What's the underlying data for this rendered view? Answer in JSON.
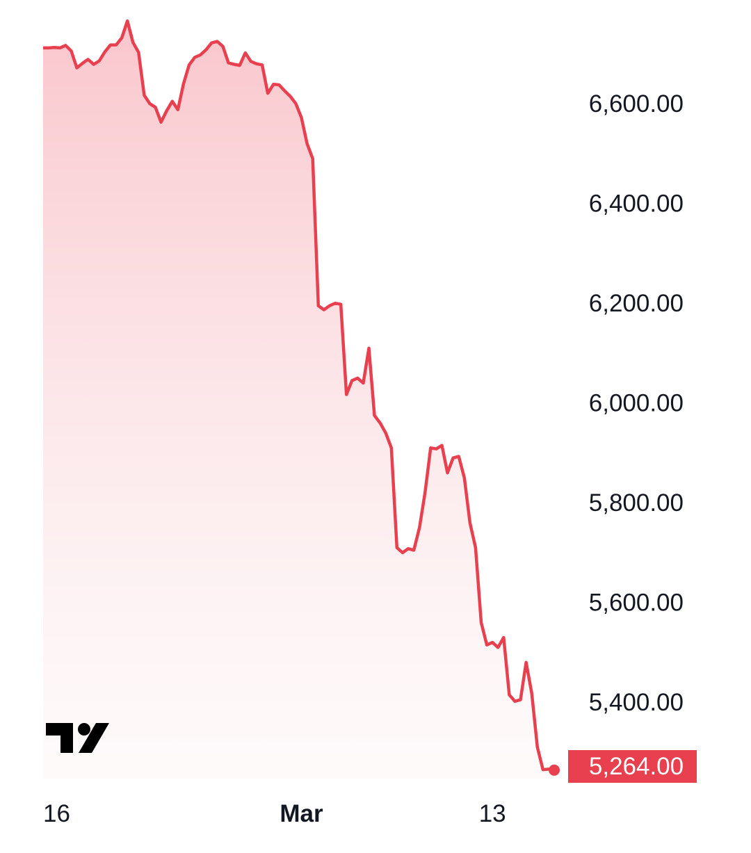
{
  "chart_data": {
    "type": "area",
    "title": "",
    "xlabel": "",
    "ylabel": "",
    "x_tick_labels": [
      {
        "label": "16",
        "index": 0,
        "bold": false
      },
      {
        "label": "Mar",
        "index": 46,
        "bold": true
      },
      {
        "label": "13",
        "index": 80,
        "bold": false
      }
    ],
    "y_tick_labels": [
      "6,600.00",
      "6,400.00",
      "6,200.00",
      "6,000.00",
      "5,800.00",
      "5,600.00",
      "5,400.00"
    ],
    "y_ticks": [
      6600,
      6400,
      6200,
      6000,
      5800,
      5600,
      5400
    ],
    "ylim": [
      5247,
      6808
    ],
    "grid": false,
    "legend": "none",
    "last_value": 5264.0,
    "last_value_label": "5,264.00",
    "colors": {
      "line": "#e8404f",
      "fill_top": "#f9c6cc",
      "label_bg": "#e8404f"
    },
    "series": [
      {
        "values": [
          6712,
          6712,
          6713,
          6712,
          6717,
          6706,
          6672,
          6681,
          6689,
          6679,
          6686,
          6704,
          6718,
          6718,
          6732,
          6766,
          6723,
          6703,
          6617,
          6600,
          6593,
          6563,
          6586,
          6605,
          6588,
          6640,
          6678,
          6693,
          6698,
          6708,
          6722,
          6725,
          6715,
          6682,
          6679,
          6677,
          6702,
          6685,
          6680,
          6678,
          6621,
          6639,
          6638,
          6626,
          6615,
          6600,
          6572,
          6520,
          6490,
          6195,
          6187,
          6195,
          6200,
          6198,
          6017,
          6045,
          6050,
          6040,
          6110,
          5975,
          5960,
          5940,
          5910,
          5710,
          5700,
          5708,
          5705,
          5750,
          5820,
          5910,
          5908,
          5915,
          5860,
          5890,
          5893,
          5850,
          5760,
          5710,
          5560,
          5515,
          5520,
          5510,
          5530,
          5415,
          5402,
          5405,
          5480,
          5418,
          5310,
          5265,
          5266,
          5264
        ]
      }
    ]
  }
}
